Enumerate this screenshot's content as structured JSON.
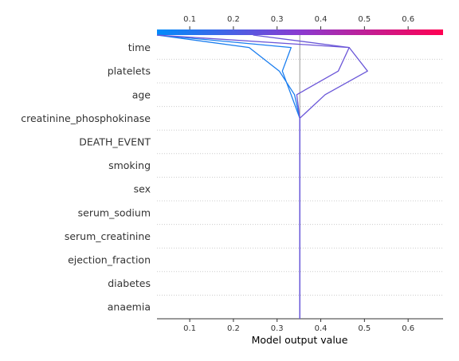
{
  "chart_data": {
    "type": "line",
    "title": "",
    "xlabel": "Model output value",
    "ylabel": "",
    "xlim": [
      0.025,
      0.68
    ],
    "x_ticks": [
      0.1,
      0.2,
      0.3,
      0.4,
      0.5,
      0.6
    ],
    "x_tick_labels": [
      "0.1",
      "0.2",
      "0.3",
      "0.4",
      "0.5",
      "0.6"
    ],
    "base_value": 0.352,
    "features": [
      "time",
      "platelets",
      "age",
      "creatinine_phosphokinase",
      "DEATH_EVENT",
      "smoking",
      "sex",
      "serum_sodium",
      "serum_creatinine",
      "ejection_fraction",
      "diabetes",
      "anaemia"
    ],
    "grid": "dotted-horizontal",
    "colorbar": {
      "position": "top",
      "colors": [
        "#008bfb",
        "#8a3ad0",
        "#ff0052"
      ],
      "range": [
        0.025,
        0.68
      ]
    },
    "series": [
      {
        "color": "#1a7ef0",
        "path": [
          [
            0.352,
            12
          ],
          [
            0.352,
            4
          ],
          [
            0.332,
            3
          ],
          [
            0.312,
            2
          ],
          [
            0.332,
            1
          ],
          [
            0.025,
            0
          ]
        ]
      },
      {
        "color": "#1b7eef",
        "path": [
          [
            0.352,
            12
          ],
          [
            0.352,
            4
          ],
          [
            0.34,
            3
          ],
          [
            0.305,
            2
          ],
          [
            0.236,
            1
          ],
          [
            0.025,
            0
          ]
        ]
      },
      {
        "color": "#6a57d8",
        "path": [
          [
            0.352,
            12
          ],
          [
            0.352,
            4
          ],
          [
            0.41,
            3
          ],
          [
            0.507,
            2
          ],
          [
            0.465,
            1
          ],
          [
            0.245,
            0
          ]
        ]
      },
      {
        "color": "#6c56d8",
        "path": [
          [
            0.352,
            12
          ],
          [
            0.352,
            4
          ],
          [
            0.345,
            3
          ],
          [
            0.44,
            2
          ],
          [
            0.465,
            1
          ],
          [
            0.025,
            0
          ]
        ]
      }
    ]
  }
}
